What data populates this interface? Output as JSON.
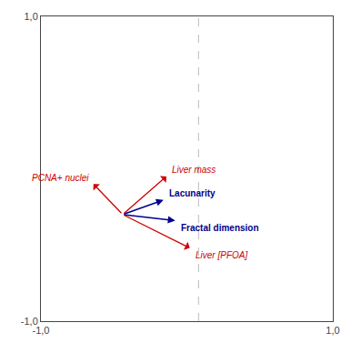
{
  "chart_data": {
    "type": "vector",
    "xlim": [
      -1.0,
      1.0
    ],
    "ylim": [
      -1.0,
      1.0
    ],
    "xticks": [
      {
        "value": -1.0,
        "label": "-1,0"
      },
      {
        "value": 1.0,
        "label": "1,0"
      }
    ],
    "yticks": [
      {
        "value": -1.0,
        "label": "-1,0"
      },
      {
        "value": 1.0,
        "label": "1,0"
      }
    ],
    "grid": false,
    "origin": [
      -0.44,
      -0.3
    ],
    "reference_line": {
      "x": 0.08,
      "color": "#BBBBBB",
      "line_style": "dashed"
    },
    "vectors": [
      {
        "label": "Lacunarity",
        "x": -0.16,
        "y": -0.205,
        "color": "#00008B",
        "marker": "filled"
      },
      {
        "label": "Fractal dimension",
        "x": -0.08,
        "y": -0.34,
        "color": "#00008B",
        "marker": "filled"
      },
      {
        "label": "PCNA+ nuclei",
        "x": -0.64,
        "y": -0.1,
        "color": "#CC0000",
        "marker": "open"
      },
      {
        "label": "Liver mass",
        "x": -0.14,
        "y": -0.05,
        "color": "#CC0000",
        "marker": "open"
      },
      {
        "label": "Liver [PFOA]",
        "x": 0.02,
        "y": -0.52,
        "color": "#CC0000",
        "marker": "open"
      }
    ]
  }
}
